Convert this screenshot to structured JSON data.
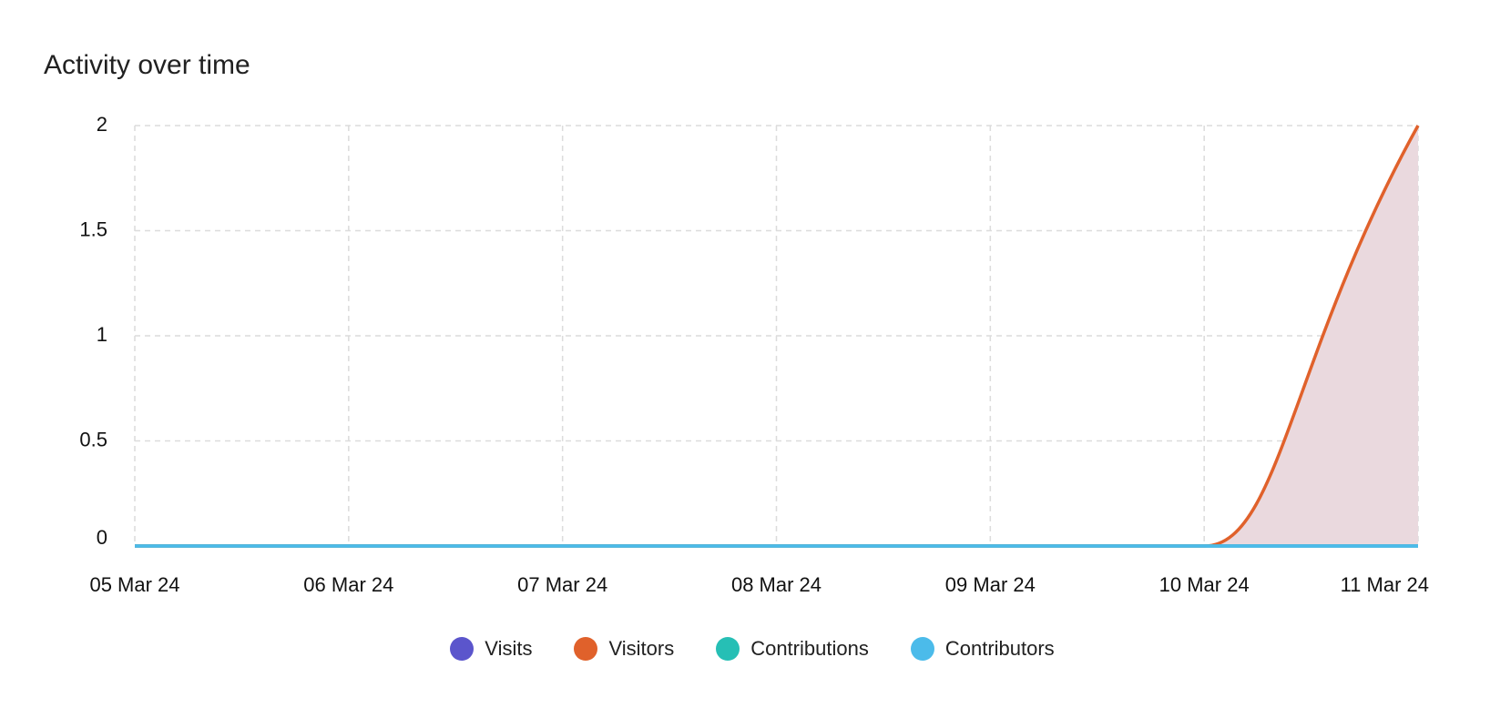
{
  "card": {
    "title": "Activity over time"
  },
  "chart_data": {
    "type": "area",
    "x": [
      "05 Mar 24",
      "06 Mar 24",
      "07 Mar 24",
      "08 Mar 24",
      "09 Mar 24",
      "10 Mar 24",
      "11 Mar 24"
    ],
    "series": [
      {
        "name": "Visits",
        "values": [
          0,
          0,
          0,
          0,
          0,
          0,
          0
        ],
        "color": "#5b55cc"
      },
      {
        "name": "Visitors",
        "values": [
          0,
          0,
          0,
          0,
          0,
          0,
          2
        ],
        "color": "#e0612b",
        "fill": "#ead9de"
      },
      {
        "name": "Contributions",
        "values": [
          0,
          0,
          0,
          0,
          0,
          0,
          0
        ],
        "color": "#26bfb5"
      },
      {
        "name": "Contributors",
        "values": [
          0,
          0,
          0,
          0,
          0,
          0,
          0
        ],
        "color": "#4bbbea"
      }
    ],
    "y_ticks": [
      "0",
      "0.5",
      "1",
      "1.5",
      "2"
    ],
    "ylim": [
      0,
      2
    ],
    "grid": true,
    "grid_color": "#dcdcdc",
    "legend_position": "bottom-center",
    "title": "Activity over time",
    "xlabel": "",
    "ylabel": ""
  }
}
